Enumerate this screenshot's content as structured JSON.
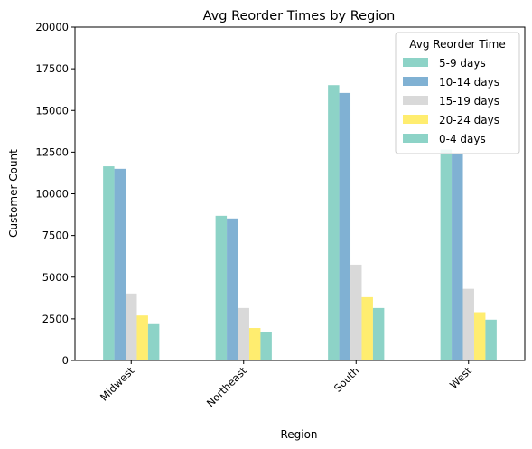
{
  "chart_data": {
    "type": "bar",
    "title": "Avg Reorder Times by Region",
    "xlabel": "Region",
    "ylabel": "Customer Count",
    "categories": [
      "Midwest",
      "Northeast",
      "South",
      "West"
    ],
    "ylim": [
      0,
      20000
    ],
    "yticks": [
      0,
      2500,
      5000,
      7500,
      10000,
      12500,
      15000,
      17500,
      20000
    ],
    "ytick_labels": [
      "0",
      "2500",
      "5000",
      "7500",
      "10000",
      "12500",
      "15000",
      "17500",
      "20000"
    ],
    "grid": false,
    "legend": {
      "title": "Avg Reorder Time",
      "placement": "top-right"
    },
    "series": [
      {
        "name": "5-9 days",
        "color": "#8dd3c7",
        "values": [
          11650,
          8680,
          16520,
          12650
        ]
      },
      {
        "name": "10-14 days",
        "color": "#80b1d3",
        "values": [
          11500,
          8520,
          16050,
          12400
        ]
      },
      {
        "name": "15-19 days",
        "color": "#d9d9d9",
        "values": [
          4020,
          3150,
          5750,
          4300
        ]
      },
      {
        "name": "20-24 days",
        "color": "#ffed6f",
        "values": [
          2700,
          1950,
          3800,
          2900
        ]
      },
      {
        "name": "0-4 days",
        "color": "#8dd3c7",
        "values": [
          2180,
          1680,
          3150,
          2450
        ]
      }
    ]
  }
}
